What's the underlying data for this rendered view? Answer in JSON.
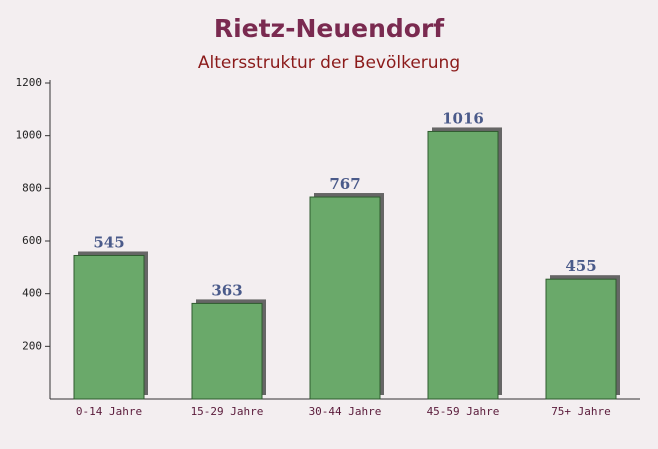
{
  "chart_data": {
    "type": "bar",
    "title": "Rietz-Neuendorf",
    "subtitle": "Altersstruktur der Bevölkerung",
    "categories": [
      "0-14 Jahre",
      "15-29 Jahre",
      "30-44 Jahre",
      "45-59 Jahre",
      "75+ Jahre"
    ],
    "values": [
      545,
      363,
      767,
      1016,
      455
    ],
    "color": "#6aa96a",
    "ylim": [
      0,
      1200
    ],
    "yticks": [
      200,
      400,
      600,
      800,
      1000,
      1200
    ]
  }
}
